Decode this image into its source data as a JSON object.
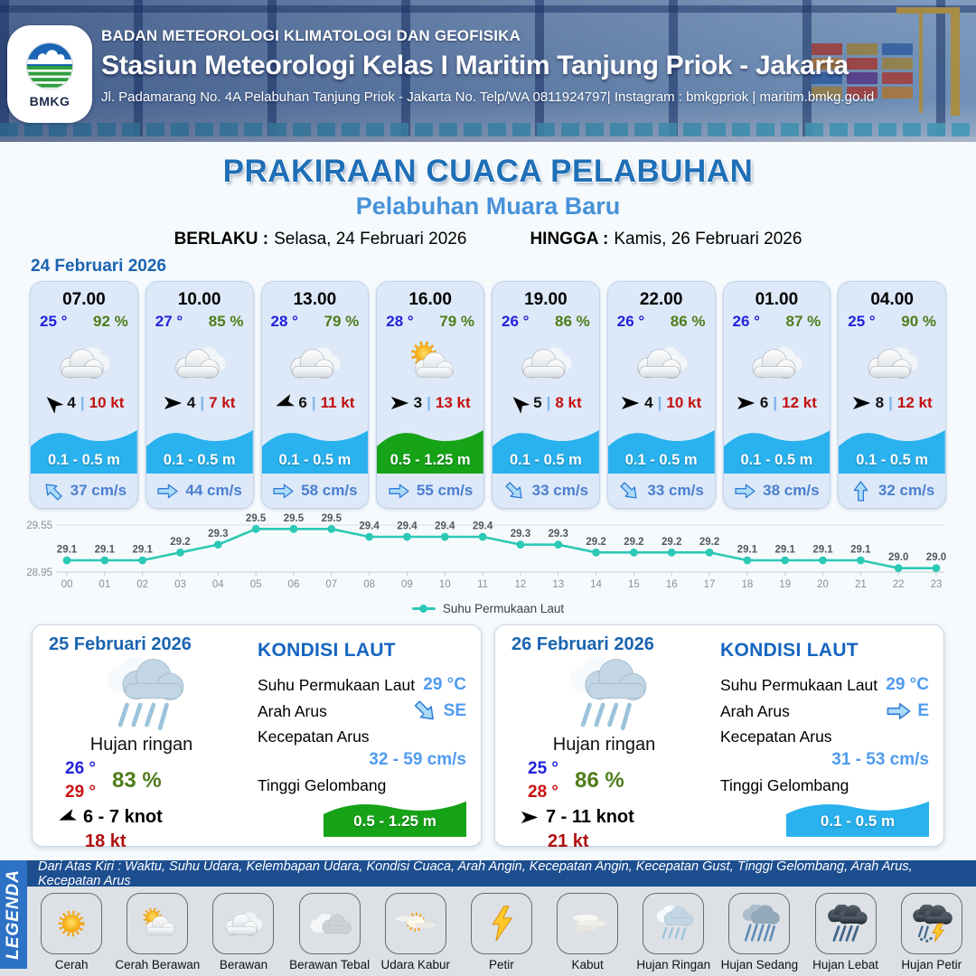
{
  "header": {
    "agency": "BADAN METEOROLOGI KLIMATOLOGI DAN GEOFISIKA",
    "station": "Stasiun Meteorologi Kelas I Maritim Tanjung Priok - Jakarta",
    "address": "Jl. Padamarang No. 4A Pelabuhan Tanjung Priok - Jakarta No. Telp/WA 0811924797| Instagram : bmkgpriok | maritim.bmkg.go.id",
    "logo_text": "BMKG"
  },
  "title": {
    "main": "PRAKIRAAN CUACA PELABUHAN",
    "subtitle": "Pelabuhan Muara Baru",
    "berlaku_label": "BERLAKU :",
    "berlaku_value": "Selasa, 24 Februari 2026",
    "hingga_label": "HINGGA :",
    "hingga_value": "Kamis, 26 Februari 2026"
  },
  "day1": {
    "date": "24 Februari 2026",
    "hours": [
      {
        "time": "07.00",
        "temp": "25 °",
        "humidity": "92 %",
        "weather": "berawan",
        "wind_dir": "NW",
        "wind_speed": "4",
        "gust": "10 kt",
        "wave": "0.1 - 0.5 m",
        "wave_level": "low",
        "current_dir": "NW",
        "current": "37 cm/s"
      },
      {
        "time": "10.00",
        "temp": "27 °",
        "humidity": "85 %",
        "weather": "berawan",
        "wind_dir": "E",
        "wind_speed": "4",
        "gust": "7 kt",
        "wave": "0.1 - 0.5 m",
        "wave_level": "low",
        "current_dir": "E",
        "current": "44 cm/s"
      },
      {
        "time": "13.00",
        "temp": "28 °",
        "humidity": "79 %",
        "weather": "berawan",
        "wind_dir": "WSW",
        "wind_speed": "6",
        "gust": "11 kt",
        "wave": "0.1 - 0.5 m",
        "wave_level": "low",
        "current_dir": "E",
        "current": "58 cm/s"
      },
      {
        "time": "16.00",
        "temp": "28 °",
        "humidity": "79 %",
        "weather": "cerah-berawan",
        "wind_dir": "E",
        "wind_speed": "3",
        "gust": "13 kt",
        "wave": "0.5 - 1.25 m",
        "wave_level": "mid",
        "current_dir": "E",
        "current": "55 cm/s"
      },
      {
        "time": "19.00",
        "temp": "26 °",
        "humidity": "86 %",
        "weather": "berawan",
        "wind_dir": "NW",
        "wind_speed": "5",
        "gust": "8 kt",
        "wave": "0.1 - 0.5 m",
        "wave_level": "low",
        "current_dir": "SE",
        "current": "33 cm/s"
      },
      {
        "time": "22.00",
        "temp": "26 °",
        "humidity": "86 %",
        "weather": "berawan",
        "wind_dir": "E",
        "wind_speed": "4",
        "gust": "10 kt",
        "wave": "0.1 - 0.5 m",
        "wave_level": "low",
        "current_dir": "SE",
        "current": "33 cm/s"
      },
      {
        "time": "01.00",
        "temp": "26 °",
        "humidity": "87 %",
        "weather": "berawan",
        "wind_dir": "E",
        "wind_speed": "6",
        "gust": "12 kt",
        "wave": "0.1 - 0.5 m",
        "wave_level": "low",
        "current_dir": "E",
        "current": "38 cm/s"
      },
      {
        "time": "04.00",
        "temp": "25 °",
        "humidity": "90 %",
        "weather": "berawan",
        "wind_dir": "E",
        "wind_speed": "8",
        "gust": "12 kt",
        "wave": "0.1 - 0.5 m",
        "wave_level": "low",
        "current_dir": "N",
        "current": "32 cm/s"
      }
    ]
  },
  "chart_data": {
    "type": "line",
    "x": [
      "00",
      "01",
      "02",
      "03",
      "04",
      "05",
      "06",
      "07",
      "08",
      "09",
      "10",
      "11",
      "12",
      "13",
      "14",
      "15",
      "16",
      "17",
      "18",
      "19",
      "20",
      "21",
      "22",
      "23"
    ],
    "values": [
      29.1,
      29.1,
      29.1,
      29.2,
      29.3,
      29.5,
      29.5,
      29.5,
      29.4,
      29.4,
      29.4,
      29.4,
      29.3,
      29.3,
      29.2,
      29.2,
      29.2,
      29.2,
      29.1,
      29.1,
      29.1,
      29.1,
      29.0,
      29.0
    ],
    "legend": "Suhu Permukaan Laut",
    "y_ticks": [
      29.55,
      28.95
    ],
    "ylim": [
      28.95,
      29.55
    ],
    "xlabel": "",
    "ylabel": "",
    "line_color": "#2cc9b5",
    "grid": true,
    "legend_position": "bottom-center"
  },
  "days": [
    {
      "date": "25 Februari 2026",
      "weather": "Hujan ringan",
      "icon": "hujan-ringan",
      "temp_min": "26 °",
      "temp_max": "29 °",
      "humidity": "83 %",
      "wind_dir": "WSW",
      "wind_range": "6  - 7 knot",
      "gust": "18 kt",
      "sea": {
        "heading": "KONDISI LAUT",
        "sst_label": "Suhu Permukaan Laut",
        "sst": "29 °C",
        "current_dir_label": "Arah Arus",
        "current_dir": "SE",
        "current_speed_label": "Kecepatan Arus",
        "current_speed": "32 - 59 cm/s",
        "wave_label": "Tinggi Gelombang",
        "wave": "0.5 - 1.25 m",
        "wave_level": "mid"
      }
    },
    {
      "date": "26 Februari 2026",
      "weather": "Hujan ringan",
      "icon": "hujan-ringan",
      "temp_min": "25 °",
      "temp_max": "28 °",
      "humidity": "86 %",
      "wind_dir": "E",
      "wind_range": "7  - 11 knot",
      "gust": "21 kt",
      "sea": {
        "heading": "KONDISI LAUT",
        "sst_label": "Suhu Permukaan Laut",
        "sst": "29 °C",
        "current_dir_label": "Arah Arus",
        "current_dir": "E",
        "current_speed_label": "Kecepatan Arus",
        "current_speed": "31 - 53 cm/s",
        "wave_label": "Tinggi Gelombang",
        "wave": "0.1 - 0.5 m",
        "wave_level": "low"
      }
    }
  ],
  "legend_bar": {
    "label": "LEGENDA",
    "description": "Dari Atas Kiri : Waktu, Suhu Udara, Kelembapan Udara, Kondisi Cuaca, Arah Angin, Kecepatan Angin, Kecepatan Gust, Tinggi Gelombang, Arah Arus, Kecepatan Arus",
    "items": [
      {
        "label": "Cerah",
        "icon": "cerah"
      },
      {
        "label": "Cerah Berawan",
        "icon": "cerah-berawan"
      },
      {
        "label": "Berawan",
        "icon": "berawan"
      },
      {
        "label": "Berawan Tebal",
        "icon": "berawan-tebal"
      },
      {
        "label": "Udara Kabur",
        "icon": "udara-kabur"
      },
      {
        "label": "Petir",
        "icon": "petir"
      },
      {
        "label": "Kabut",
        "icon": "kabut"
      },
      {
        "label": "Hujan Ringan",
        "icon": "hujan-ringan"
      },
      {
        "label": "Hujan Sedang",
        "icon": "hujan-sedang"
      },
      {
        "label": "Hujan Lebat",
        "icon": "hujan-lebat"
      },
      {
        "label": "Hujan Petir",
        "icon": "hujan-petir"
      }
    ]
  },
  "colors": {
    "accent_blue": "#1f6fb7",
    "subtitle_blue": "#4792d8",
    "temp_blue": "#2222dd",
    "humidity_green": "#4f7d1b",
    "gust_red": "#c40f0f",
    "wave_blue": "#29b2ee",
    "wave_green": "#16a318",
    "current_text_blue": "#4a7fd0",
    "sea_value_blue": "#4f9bf0",
    "chart_teal": "#2cc9b5",
    "legend_strip_navy": "#1d4e8f",
    "legend_side_blue": "#2d72c4"
  }
}
